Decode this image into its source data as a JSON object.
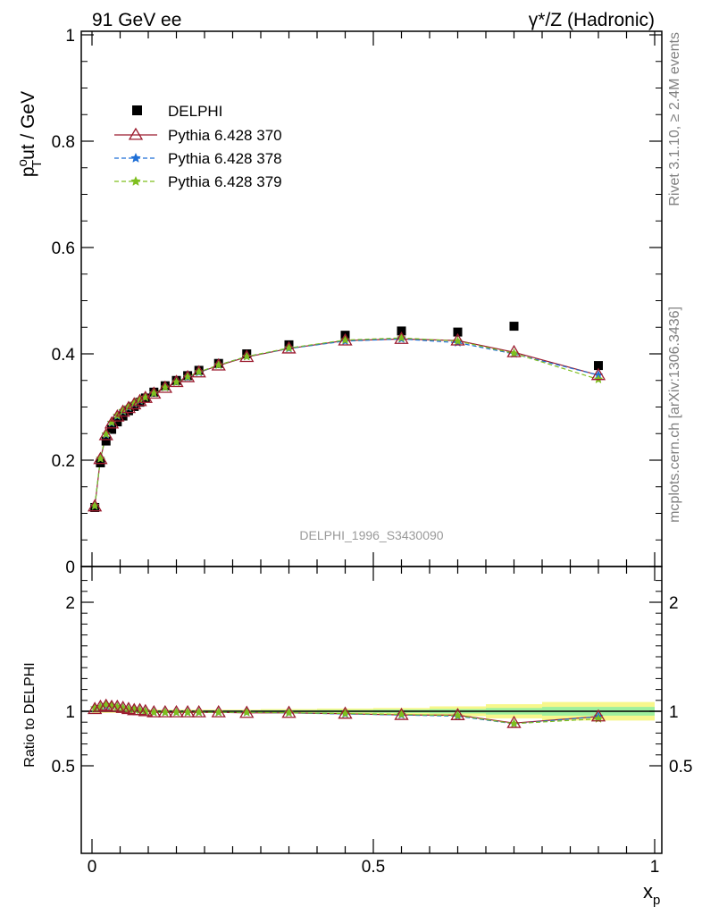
{
  "header": {
    "left": "91 GeV ee",
    "right": "γ*/Z (Hadronic)"
  },
  "side_labels": {
    "rivet": "Rivet 3.1.10, ≥ 2.4M events",
    "mcplots": "mcplots.cern.ch [arXiv:1306.3436]"
  },
  "analysis_tag": "DELPHI_1996_S3430090",
  "colors": {
    "data": "#000000",
    "p370": "#9b1b2e",
    "p378": "#1f6fd6",
    "p379": "#7fbf1f",
    "band_inner": "#9ef09e",
    "band_outer": "#f7f78c"
  },
  "chart_data": [
    {
      "type": "scatter",
      "panel": "main",
      "ylabel_main": "p",
      "ylabel_sup": "o",
      "ylabel_sub": "T",
      "ylabel_rest": "ut / GeV",
      "xlim": [
        0,
        1
      ],
      "ylim": [
        0,
        1
      ],
      "yticks": [
        {
          "v": 0,
          "label": "0"
        },
        {
          "v": 0.2,
          "label": "0.2"
        },
        {
          "v": 0.4,
          "label": "0.4"
        },
        {
          "v": 0.6,
          "label": "0.6"
        },
        {
          "v": 0.8,
          "label": "0.8"
        },
        {
          "v": 1.0,
          "label": "1"
        }
      ],
      "legend": [
        {
          "key": "data",
          "name": "DELPHI"
        },
        {
          "key": "p370",
          "name": "Pythia 6.428 370"
        },
        {
          "key": "p378",
          "name": "Pythia 6.428 378"
        },
        {
          "key": "p379",
          "name": "Pythia 6.428 379"
        }
      ],
      "x": [
        0.005,
        0.015,
        0.025,
        0.035,
        0.045,
        0.055,
        0.065,
        0.075,
        0.085,
        0.095,
        0.11,
        0.13,
        0.15,
        0.17,
        0.19,
        0.225,
        0.275,
        0.35,
        0.45,
        0.55,
        0.65,
        0.75,
        0.9
      ],
      "series": [
        {
          "key": "data",
          "name": "DELPHI",
          "values": [
            0.111,
            0.195,
            0.236,
            0.258,
            0.272,
            0.283,
            0.293,
            0.301,
            0.309,
            0.317,
            0.328,
            0.34,
            0.35,
            0.359,
            0.369,
            0.382,
            0.4,
            0.417,
            0.435,
            0.443,
            0.441,
            0.452,
            0.378
          ]
        },
        {
          "key": "p370",
          "name": "Pythia 6.428 370",
          "values": [
            0.113,
            0.202,
            0.247,
            0.269,
            0.282,
            0.291,
            0.298,
            0.305,
            0.311,
            0.317,
            0.325,
            0.336,
            0.347,
            0.356,
            0.365,
            0.378,
            0.394,
            0.41,
            0.425,
            0.428,
            0.425,
            0.403,
            0.36
          ]
        },
        {
          "key": "p378",
          "name": "Pythia 6.428 378",
          "values": [
            0.114,
            0.203,
            0.248,
            0.27,
            0.283,
            0.292,
            0.299,
            0.306,
            0.312,
            0.318,
            0.326,
            0.337,
            0.347,
            0.356,
            0.365,
            0.379,
            0.395,
            0.41,
            0.424,
            0.428,
            0.421,
            0.4,
            0.36
          ]
        },
        {
          "key": "p379",
          "name": "Pythia 6.428 379",
          "values": [
            0.114,
            0.203,
            0.249,
            0.271,
            0.284,
            0.293,
            0.3,
            0.307,
            0.313,
            0.318,
            0.326,
            0.337,
            0.347,
            0.357,
            0.366,
            0.379,
            0.395,
            0.411,
            0.426,
            0.43,
            0.424,
            0.401,
            0.352
          ]
        }
      ]
    },
    {
      "type": "line",
      "panel": "ratio",
      "ylabel": "Ratio to DELPHI",
      "xlabel_main": "x",
      "xlabel_sub": "p",
      "xlim": [
        0,
        1
      ],
      "ylim": [
        0.3,
        2.25
      ],
      "yticks": [
        {
          "v": 0.5,
          "label": "0.5"
        },
        {
          "v": 1,
          "label": "1"
        },
        {
          "v": 2,
          "label": "2"
        }
      ],
      "xticks": [
        {
          "v": 0,
          "label": "0"
        },
        {
          "v": 0.5,
          "label": "0.5"
        },
        {
          "v": 1,
          "label": "1"
        }
      ],
      "band_edges": [
        0,
        0.3,
        0.4,
        0.5,
        0.6,
        0.7,
        0.8,
        1.0
      ],
      "band_inner_halfwidth": [
        0.008,
        0.01,
        0.012,
        0.015,
        0.02,
        0.03,
        0.04
      ],
      "band_outer_halfwidth": [
        0.015,
        0.02,
        0.025,
        0.03,
        0.045,
        0.065,
        0.085
      ],
      "series": [
        {
          "key": "p370",
          "values": [
            1.02,
            1.04,
            1.05,
            1.04,
            1.04,
            1.03,
            1.02,
            1.01,
            1.01,
            1.0,
            0.99,
            0.99,
            0.99,
            0.99,
            0.99,
            0.99,
            0.985,
            0.985,
            0.977,
            0.966,
            0.964,
            0.892,
            0.952
          ]
        },
        {
          "key": "p378",
          "values": [
            1.03,
            1.04,
            1.05,
            1.05,
            1.04,
            1.03,
            1.02,
            1.02,
            1.01,
            1.0,
            0.99,
            0.99,
            0.99,
            0.99,
            0.99,
            0.99,
            0.99,
            0.985,
            0.975,
            0.966,
            0.955,
            0.885,
            0.952
          ]
        },
        {
          "key": "p379",
          "values": [
            1.03,
            1.04,
            1.06,
            1.05,
            1.04,
            1.03,
            1.02,
            1.02,
            1.01,
            1.0,
            0.99,
            0.99,
            0.99,
            0.99,
            0.99,
            0.99,
            0.99,
            0.986,
            0.979,
            0.971,
            0.961,
            0.887,
            0.931
          ]
        }
      ]
    }
  ]
}
